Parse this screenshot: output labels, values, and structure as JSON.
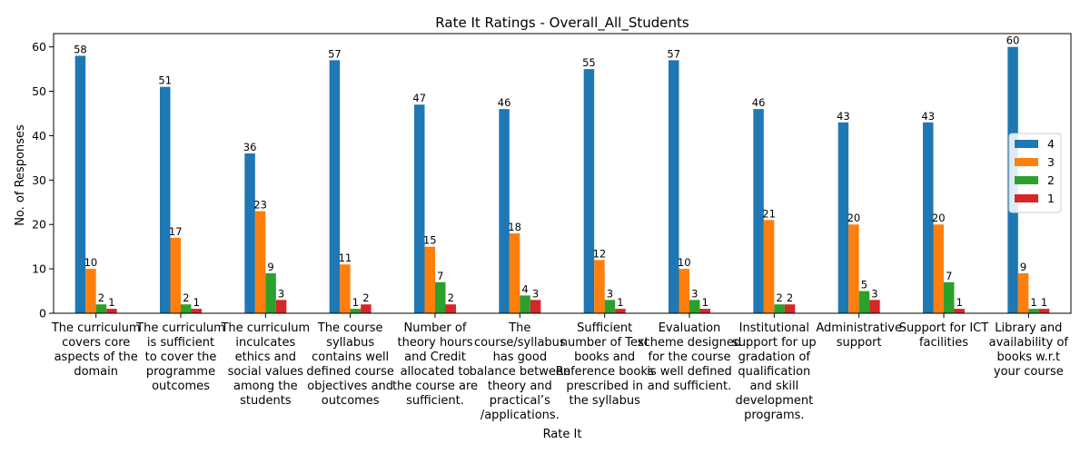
{
  "chart_data": {
    "type": "bar",
    "title": "Rate It Ratings - Overall_All_Students",
    "xlabel": "Rate It",
    "ylabel": "No. of Responses",
    "ylim": [
      0,
      63
    ],
    "yticks": [
      0,
      10,
      20,
      30,
      40,
      50,
      60
    ],
    "grid": false,
    "legend_position": "right",
    "categories": [
      [
        "The curriculum",
        "covers core",
        "aspects of the",
        "domain"
      ],
      [
        "The curriculum",
        "is sufficient",
        "to cover the",
        "programme",
        "outcomes"
      ],
      [
        "The curriculum",
        "inculcates",
        "ethics and",
        "social values",
        "among the",
        "students"
      ],
      [
        "The course",
        "syllabus",
        "contains well",
        "defined course",
        "objectives and",
        "outcomes"
      ],
      [
        "Number of",
        "theory hours",
        "and Credit",
        "allocated to",
        "the course are",
        "sufficient."
      ],
      [
        "The",
        "course/syllabus",
        "has good",
        "balance between",
        "theory and",
        "practical’s",
        "/applications."
      ],
      [
        "Sufficient",
        "number of Text",
        "books and",
        "Reference books",
        "prescribed in",
        "the syllabus"
      ],
      [
        "Evaluation",
        "scheme designed",
        "for the course",
        "is well defined",
        "and sufficient."
      ],
      [
        "Institutional",
        "support for up",
        "gradation of",
        "qualification",
        "and skill",
        "development",
        "programs."
      ],
      [
        "Administrative",
        "support"
      ],
      [
        "Support for ICT",
        "facilities"
      ],
      [
        "Library and",
        "availability of",
        "books  w.r.t",
        "your course"
      ]
    ],
    "series": [
      {
        "name": "4",
        "color": "#1f77b4",
        "values": [
          58,
          51,
          36,
          57,
          47,
          46,
          55,
          57,
          46,
          43,
          43,
          60
        ]
      },
      {
        "name": "3",
        "color": "#ff7f0e",
        "values": [
          10,
          17,
          23,
          11,
          15,
          18,
          12,
          10,
          21,
          20,
          20,
          9
        ]
      },
      {
        "name": "2",
        "color": "#2ca02c",
        "values": [
          2,
          2,
          9,
          1,
          7,
          4,
          3,
          3,
          2,
          5,
          7,
          1
        ]
      },
      {
        "name": "1",
        "color": "#d62728",
        "values": [
          1,
          1,
          3,
          2,
          2,
          3,
          1,
          1,
          2,
          3,
          1,
          1
        ]
      }
    ]
  }
}
